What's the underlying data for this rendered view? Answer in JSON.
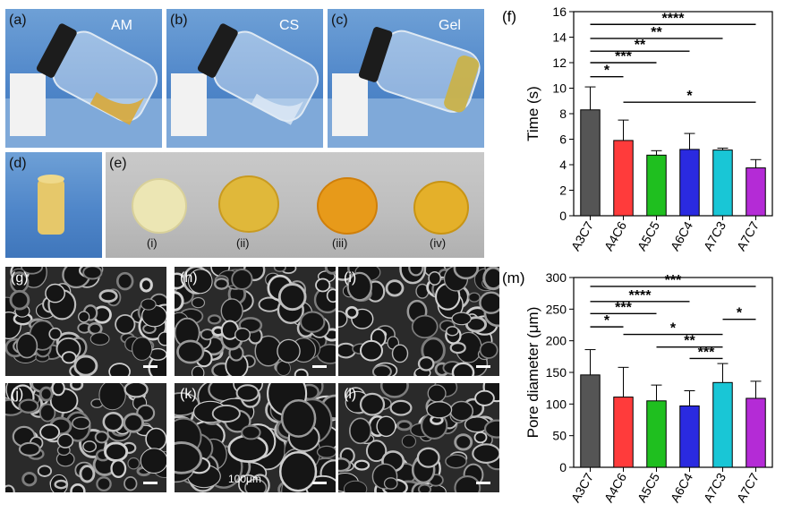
{
  "photos": {
    "a": {
      "label": "(a)",
      "caption": "AM"
    },
    "b": {
      "label": "(b)",
      "caption": "CS"
    },
    "c": {
      "label": "(c)",
      "caption": "Gel"
    },
    "d": {
      "label": "(d)"
    },
    "e": {
      "label": "(e)",
      "items": [
        "(i)",
        "(ii)",
        "(iii)",
        "(iv)"
      ]
    }
  },
  "sem": {
    "labels": [
      "(g)",
      "(h)",
      "(i)",
      "(j)",
      "(k)",
      "(l)"
    ],
    "scale_text": "100μm"
  },
  "chart_data": [
    {
      "panel": "(f)",
      "type": "bar",
      "categories": [
        "A3C7",
        "A4C6",
        "A5C5",
        "A6C4",
        "A7C3",
        "A7C7"
      ],
      "values": [
        8.3,
        5.9,
        4.75,
        5.2,
        5.15,
        3.75
      ],
      "errors": [
        1.8,
        1.6,
        0.35,
        1.25,
        0.15,
        0.65
      ],
      "colors": [
        "#555555",
        "#ff3b3b",
        "#1fbf1f",
        "#2a2ae0",
        "#19c6d6",
        "#b42bd6"
      ],
      "xlabel": "",
      "ylabel": "Time (s)",
      "ylim": [
        0,
        16
      ],
      "yticks": [
        0,
        2,
        4,
        6,
        8,
        10,
        12,
        14,
        16
      ],
      "significance": [
        {
          "from": 0,
          "to": 1,
          "y": 10.9,
          "text": "*"
        },
        {
          "from": 0,
          "to": 2,
          "y": 12.0,
          "text": "***"
        },
        {
          "from": 0,
          "to": 3,
          "y": 12.9,
          "text": "**"
        },
        {
          "from": 0,
          "to": 4,
          "y": 13.9,
          "text": "**"
        },
        {
          "from": 0,
          "to": 5,
          "y": 15.0,
          "text": "****"
        },
        {
          "from": 1,
          "to": 5,
          "y": 8.9,
          "text": "*"
        }
      ]
    },
    {
      "panel": "(m)",
      "type": "bar",
      "categories": [
        "A3C7",
        "A4C6",
        "A5C5",
        "A6C4",
        "A7C3",
        "A7C7"
      ],
      "values": [
        146,
        111,
        105,
        97,
        134,
        109
      ],
      "errors": [
        40,
        47,
        25,
        24,
        30,
        27
      ],
      "colors": [
        "#555555",
        "#ff3b3b",
        "#1fbf1f",
        "#2a2ae0",
        "#19c6d6",
        "#b42bd6"
      ],
      "xlabel": "",
      "ylabel": "Pore diameter (μm)",
      "ylim": [
        0,
        300
      ],
      "yticks": [
        0,
        50,
        100,
        150,
        200,
        250,
        300
      ],
      "significance": [
        {
          "from": 0,
          "to": 5,
          "y": 286,
          "text": "***"
        },
        {
          "from": 0,
          "to": 3,
          "y": 262,
          "text": "****"
        },
        {
          "from": 0,
          "to": 2,
          "y": 243,
          "text": "***"
        },
        {
          "from": 0,
          "to": 1,
          "y": 222,
          "text": "*"
        },
        {
          "from": 4,
          "to": 5,
          "y": 234,
          "text": "*"
        },
        {
          "from": 1,
          "to": 4,
          "y": 210,
          "text": "*"
        },
        {
          "from": 2,
          "to": 4,
          "y": 190,
          "text": "**"
        },
        {
          "from": 3,
          "to": 4,
          "y": 172,
          "text": "***"
        }
      ]
    }
  ]
}
